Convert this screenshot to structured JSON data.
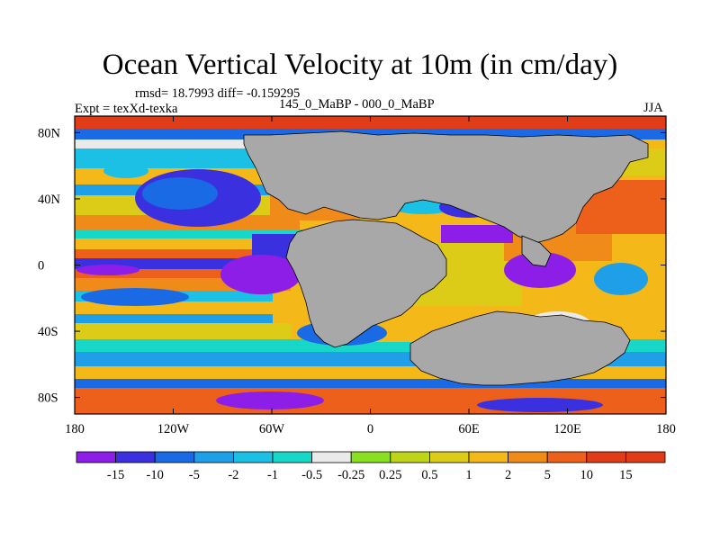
{
  "title": "Ocean Vertical Velocity at 10m (in cm/day)",
  "stats": "rmsd= 18.7993  diff= -0.159295",
  "left_label": "Expt = texXd-texka",
  "center_label": "145_0_MaBP - 000_0_MaBP",
  "right_label": "JJA",
  "lat_labels": [
    "80N",
    "40N",
    "0",
    "40S",
    "80S"
  ],
  "lon_labels": [
    "180",
    "120W",
    "60W",
    "0",
    "60E",
    "120E",
    "180"
  ],
  "colorbar": {
    "colors": [
      "#8c1ee8",
      "#3a30e0",
      "#1a6ae6",
      "#1e9fe8",
      "#1cc0e4",
      "#17d8c8",
      "#eaeaea",
      "#88e020",
      "#bdd418",
      "#dccc18",
      "#f4b818",
      "#f08a18",
      "#ec601c",
      "#e03c18"
    ],
    "labels": [
      "-15",
      "-10",
      "-5",
      "-2",
      "-1",
      "-0.5",
      "-0.25",
      "0.25",
      "0.5",
      "1",
      "2",
      "5",
      "10",
      "15"
    ]
  },
  "colors": {
    "land": "#a8a8a8",
    "coast": "#000000"
  }
}
